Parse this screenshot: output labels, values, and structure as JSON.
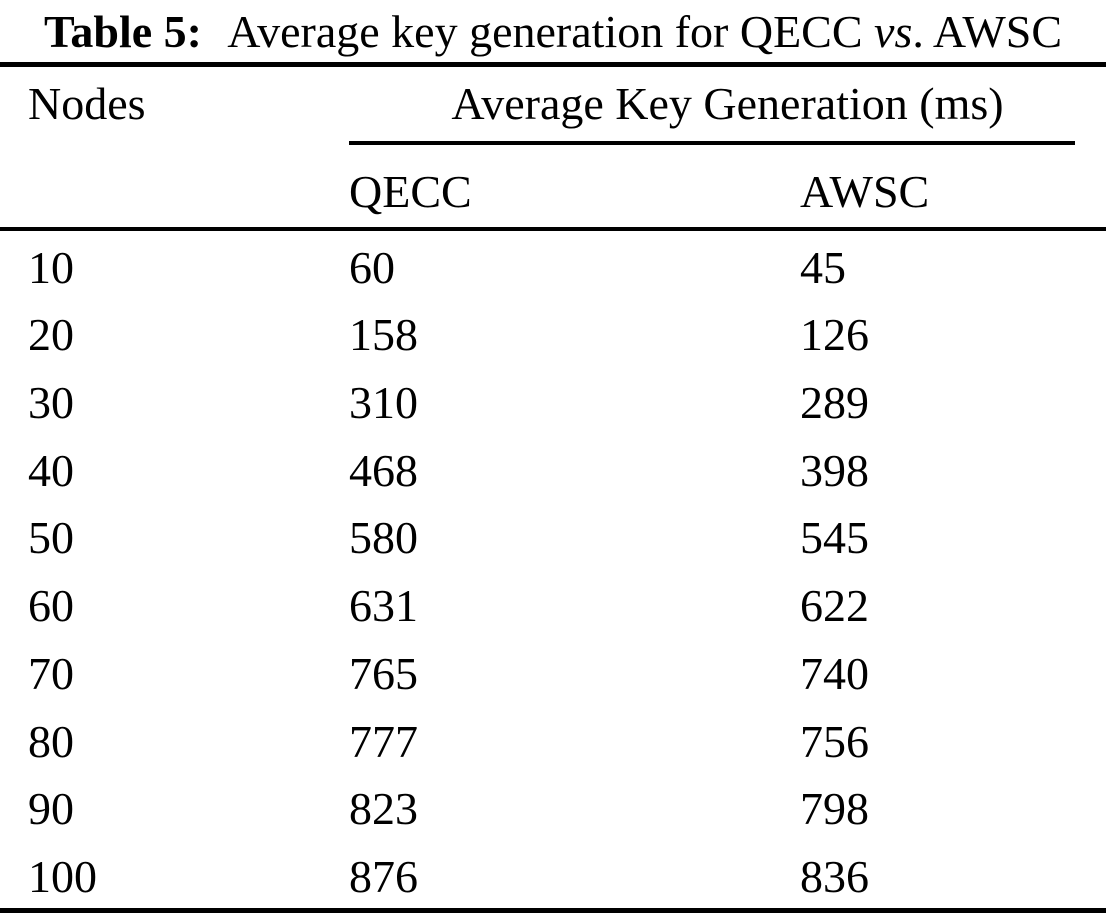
{
  "colors": {
    "background": "#ffffff",
    "text": "#000000",
    "rule": "#000000"
  },
  "caption": {
    "label": "Table 5:",
    "body": "Average key generation for QECC",
    "vs": "vs",
    "tail": ". AWSC"
  },
  "table": {
    "columns": {
      "nodes": "Nodes",
      "span": "Average Key Generation (ms)",
      "sub": [
        "QECC",
        "AWSC"
      ]
    },
    "rows": [
      {
        "nodes": "10",
        "qecc": "60",
        "awsc": "45"
      },
      {
        "nodes": "20",
        "qecc": "158",
        "awsc": "126"
      },
      {
        "nodes": "30",
        "qecc": "310",
        "awsc": "289"
      },
      {
        "nodes": "40",
        "qecc": "468",
        "awsc": "398"
      },
      {
        "nodes": "50",
        "qecc": "580",
        "awsc": "545"
      },
      {
        "nodes": "60",
        "qecc": "631",
        "awsc": "622"
      },
      {
        "nodes": "70",
        "qecc": "765",
        "awsc": "740"
      },
      {
        "nodes": "80",
        "qecc": "777",
        "awsc": "756"
      },
      {
        "nodes": "90",
        "qecc": "823",
        "awsc": "798"
      },
      {
        "nodes": "100",
        "qecc": "876",
        "awsc": "836"
      }
    ]
  }
}
